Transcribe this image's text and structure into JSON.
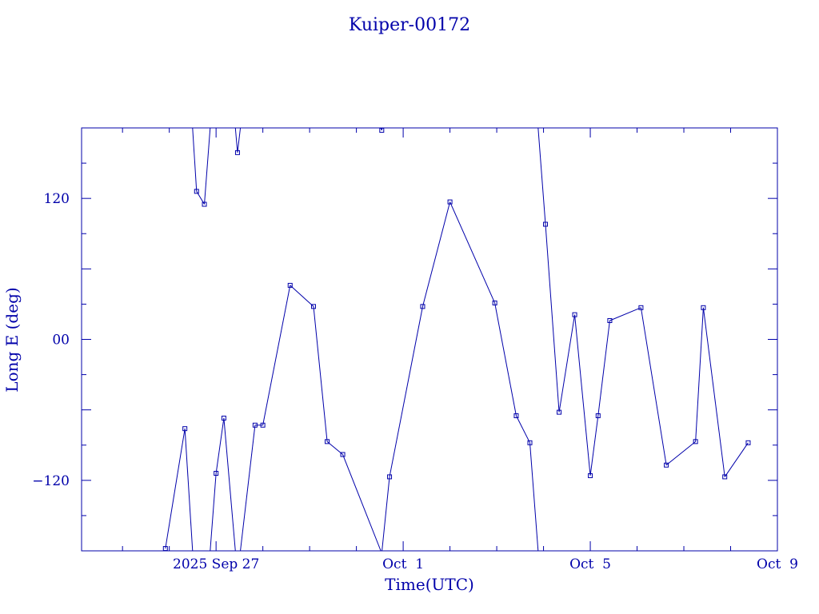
{
  "chart_data": {
    "type": "line",
    "title": "Kuiper-00172",
    "xlabel": "Time(UTC)",
    "ylabel": "Long E (deg)",
    "ylim": [
      -180,
      180
    ],
    "xlim": [
      "2025-09-24T03:00",
      "2025-10-09T00:00"
    ],
    "x_ticks": [
      {
        "x": "2025-09-27T00:00",
        "label": "2025 Sep 27"
      },
      {
        "x": "2025-10-01T00:00",
        "label": "Oct  1"
      },
      {
        "x": "2025-10-05T00:00",
        "label": "Oct  5"
      },
      {
        "x": "2025-10-09T00:00",
        "label": "Oct  9"
      }
    ],
    "y_ticks": [
      {
        "y": 120,
        "label": "120"
      },
      {
        "y": 0,
        "label": "00"
      },
      {
        "y": -120,
        "label": "−120"
      }
    ],
    "grid": false,
    "wrap": true,
    "color": "#0000aa",
    "series": [
      {
        "x": [
          "2025-09-25T22:00",
          "2025-09-26T08:00",
          "2025-09-26T14:00",
          "2025-09-26T18:00",
          "2025-09-27T00:00",
          "2025-09-27T04:00",
          "2025-09-27T11:00",
          "2025-09-27T20:00",
          "2025-09-28T00:00",
          "2025-09-28T14:00",
          "2025-09-29T02:00",
          "2025-09-29T09:00",
          "2025-09-29T17:00",
          "2025-09-30T13:00",
          "2025-09-30T17:00",
          "2025-10-01T10:00",
          "2025-10-02T00:00",
          "2025-10-02T23:00",
          "2025-10-03T10:00",
          "2025-10-03T17:00",
          "2025-10-04T01:00",
          "2025-10-04T08:00",
          "2025-10-04T16:00",
          "2025-10-05T00:00",
          "2025-10-05T04:00",
          "2025-10-05T10:00",
          "2025-10-06T02:00",
          "2025-10-06T15:00",
          "2025-10-07T06:00",
          "2025-10-07T10:00",
          "2025-10-07T21:00",
          "2025-10-08T09:00"
        ],
        "y": [
          -178,
          -76,
          126,
          115,
          -114,
          -67,
          159,
          -73,
          -73,
          46,
          28,
          -87,
          -98,
          178,
          -117,
          28,
          117,
          31,
          -65,
          -88,
          98,
          -62,
          21,
          -116,
          -65,
          16,
          27,
          -107,
          -87,
          27,
          -117,
          -88
        ]
      }
    ]
  }
}
